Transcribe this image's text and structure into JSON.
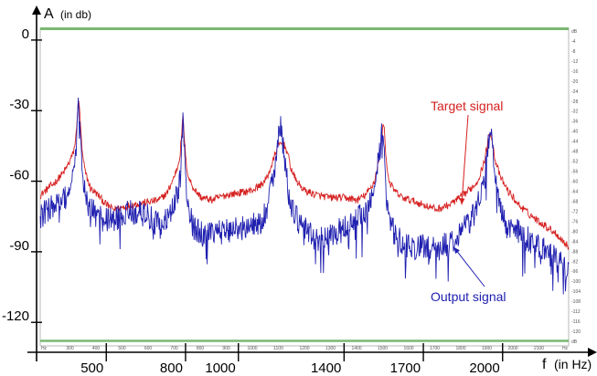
{
  "chart_data": {
    "type": "line",
    "title": "",
    "ylabel": "A",
    "ylabel_unit": "(in db)",
    "xlabel": "f",
    "xlabel_unit": "(in Hz)",
    "xlim": [
      250,
      2250
    ],
    "ylim": [
      -130,
      5
    ],
    "y_ticks": [
      0,
      -30,
      -60,
      -90,
      -120
    ],
    "x_ticks": [
      500,
      800,
      1000,
      1400,
      1700,
      2000
    ],
    "grid": false,
    "legend": "annotations",
    "inner_axis": {
      "x_labels": [
        "Hz",
        "300",
        "400",
        "500",
        "600",
        "700",
        "800",
        "900",
        "1000",
        "1100",
        "1200",
        "1300",
        "1400",
        "1500",
        "1600",
        "1700",
        "1800",
        "1900",
        "2000",
        "2100",
        "Hz"
      ],
      "y_labels": [
        "dB",
        "-4",
        "-8",
        "-12",
        "-16",
        "-20",
        "-24",
        "-28",
        "-32",
        "-36",
        "-40",
        "-44",
        "-48",
        "-52",
        "-56",
        "-60",
        "-64",
        "-68",
        "-72",
        "-76",
        "-80",
        "-84",
        "-88",
        "-92",
        "-96",
        "-100",
        "-104",
        "-108",
        "-112",
        "-116",
        "-120",
        "dB"
      ]
    },
    "series": [
      {
        "name": "Target signal",
        "color": "#d62020",
        "x": [
          250,
          280,
          310,
          340,
          360,
          375,
          385,
          390,
          395,
          400,
          405,
          410,
          420,
          440,
          470,
          500,
          530,
          560,
          600,
          650,
          700,
          730,
          750,
          770,
          780,
          785,
          790,
          795,
          800,
          810,
          830,
          860,
          900,
          950,
          1000,
          1050,
          1080,
          1100,
          1110,
          1120,
          1130,
          1140,
          1150,
          1160,
          1170,
          1180,
          1190,
          1200,
          1220,
          1250,
          1300,
          1350,
          1400,
          1450,
          1480,
          1500,
          1515,
          1530,
          1540,
          1545,
          1550,
          1555,
          1560,
          1570,
          1590,
          1620,
          1650,
          1700,
          1750,
          1800,
          1850,
          1880,
          1900,
          1915,
          1930,
          1940,
          1948,
          1955,
          1960,
          1970,
          1990,
          2020,
          2060,
          2100,
          2150,
          2200,
          2250
        ],
        "y": [
          -66,
          -63,
          -60,
          -56,
          -52,
          -48,
          -42,
          -32,
          -26,
          -30,
          -42,
          -49,
          -56,
          -63,
          -66,
          -70,
          -72,
          -71,
          -70,
          -69,
          -68,
          -65,
          -60,
          -54,
          -48,
          -40,
          -33,
          -40,
          -50,
          -58,
          -63,
          -67,
          -68,
          -66,
          -65,
          -64,
          -62,
          -60,
          -58,
          -55,
          -52,
          -48,
          -45,
          -44,
          -44,
          -46,
          -50,
          -55,
          -60,
          -64,
          -66,
          -67,
          -67,
          -68,
          -66,
          -63,
          -60,
          -52,
          -44,
          -38,
          -36,
          -42,
          -52,
          -60,
          -64,
          -67,
          -68,
          -70,
          -72,
          -70,
          -66,
          -63,
          -61,
          -57,
          -52,
          -46,
          -41,
          -39,
          -42,
          -50,
          -58,
          -64,
          -70,
          -74,
          -78,
          -82,
          -88
        ]
      },
      {
        "name": "Output signal",
        "color": "#2020b0",
        "x": [
          250,
          280,
          310,
          340,
          360,
          375,
          385,
          390,
          395,
          400,
          405,
          410,
          420,
          440,
          470,
          500,
          530,
          560,
          600,
          650,
          700,
          730,
          750,
          770,
          780,
          785,
          790,
          795,
          800,
          810,
          830,
          860,
          900,
          950,
          1000,
          1050,
          1080,
          1100,
          1110,
          1120,
          1130,
          1140,
          1150,
          1160,
          1170,
          1180,
          1190,
          1200,
          1220,
          1250,
          1300,
          1350,
          1400,
          1450,
          1480,
          1500,
          1515,
          1530,
          1540,
          1545,
          1550,
          1555,
          1560,
          1570,
          1590,
          1620,
          1650,
          1700,
          1750,
          1800,
          1850,
          1880,
          1900,
          1915,
          1930,
          1940,
          1948,
          1955,
          1960,
          1970,
          1990,
          2020,
          2060,
          2100,
          2150,
          2200,
          2250
        ],
        "y": [
          -75,
          -72,
          -70,
          -68,
          -64,
          -58,
          -50,
          -38,
          -26,
          -34,
          -48,
          -58,
          -66,
          -72,
          -75,
          -76,
          -77,
          -74,
          -73,
          -74,
          -79,
          -76,
          -72,
          -66,
          -58,
          -44,
          -31,
          -44,
          -60,
          -72,
          -80,
          -82,
          -83,
          -81,
          -80,
          -79,
          -78,
          -74,
          -70,
          -64,
          -58,
          -52,
          -42,
          -36,
          -46,
          -56,
          -65,
          -72,
          -76,
          -80,
          -85,
          -83,
          -80,
          -76,
          -74,
          -68,
          -60,
          -52,
          -43,
          -37,
          -40,
          -52,
          -66,
          -78,
          -82,
          -86,
          -88,
          -88,
          -89,
          -86,
          -80,
          -76,
          -72,
          -66,
          -58,
          -48,
          -41,
          -38,
          -44,
          -58,
          -72,
          -80,
          -82,
          -85,
          -88,
          -93,
          -97
        ]
      }
    ],
    "annotations": [
      {
        "text": "Target signal",
        "color": "#d62020",
        "target_x": 1845,
        "target_y": -70
      },
      {
        "text": "Output signal",
        "color": "#2020b0",
        "target_x": 1815,
        "target_y": -88
      }
    ]
  }
}
